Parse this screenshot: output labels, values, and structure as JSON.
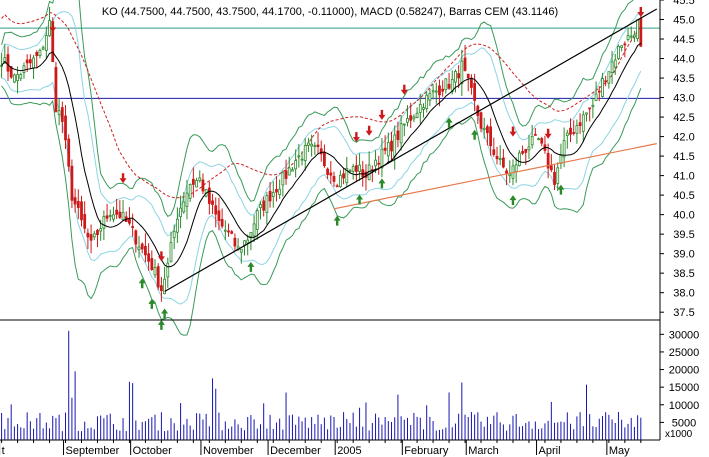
{
  "chart_data": {
    "type": "candlestick",
    "title": "KO (44.7500, 44.7500, 43.7500, 44.1700, -0.11000), MACD (0.58247), Barras CEM (43.1146)",
    "price_axis": {
      "ylim": [
        37.3,
        45.5
      ],
      "ticks": [
        "37.5",
        "38.0",
        "38.5",
        "39.0",
        "39.5",
        "40.0",
        "40.5",
        "41.0",
        "41.5",
        "42.0",
        "42.5",
        "43.0",
        "43.5",
        "44.0",
        "44.5",
        "45.0",
        "45.5"
      ]
    },
    "volume_axis": {
      "ylim": [
        0,
        33500
      ],
      "ticks": [
        "5000",
        "10000",
        "15000",
        "20000",
        "25000",
        "30000"
      ],
      "unit": "x1000"
    },
    "x_axis_labels": [
      {
        "label": "t",
        "index": 0
      },
      {
        "label": "September",
        "index": 20
      },
      {
        "label": "October",
        "index": 41
      },
      {
        "label": "November",
        "index": 63
      },
      {
        "label": "December",
        "index": 84
      },
      {
        "label": "2005",
        "index": 105
      },
      {
        "label": "February",
        "index": 126
      },
      {
        "label": "March",
        "index": 146
      },
      {
        "label": "April",
        "index": 168
      },
      {
        "label": "May",
        "index": 190
      }
    ],
    "num_bars": 205,
    "close_anchors": [
      [
        0,
        44.0
      ],
      [
        4,
        43.5
      ],
      [
        8,
        43.8
      ],
      [
        12,
        44.1
      ],
      [
        15,
        44.9
      ],
      [
        17,
        42.8
      ],
      [
        19,
        42.4
      ],
      [
        22,
        40.5
      ],
      [
        25,
        39.8
      ],
      [
        28,
        39.2
      ],
      [
        31,
        39.7
      ],
      [
        34,
        40.1
      ],
      [
        37,
        40.0
      ],
      [
        40,
        39.7
      ],
      [
        44,
        39.1
      ],
      [
        47,
        38.7
      ],
      [
        50,
        38.1
      ],
      [
        52,
        38.7
      ],
      [
        55,
        40.0
      ],
      [
        59,
        40.8
      ],
      [
        62,
        40.9
      ],
      [
        65,
        40.3
      ],
      [
        68,
        39.8
      ],
      [
        71,
        39.5
      ],
      [
        74,
        39.1
      ],
      [
        77,
        39.4
      ],
      [
        80,
        40.0
      ],
      [
        84,
        40.5
      ],
      [
        88,
        40.9
      ],
      [
        92,
        41.4
      ],
      [
        96,
        41.7
      ],
      [
        99,
        41.6
      ],
      [
        102,
        41.2
      ],
      [
        105,
        40.9
      ],
      [
        108,
        41.1
      ],
      [
        111,
        41.2
      ],
      [
        114,
        41.0
      ],
      [
        117,
        41.4
      ],
      [
        120,
        41.6
      ],
      [
        123,
        41.9
      ],
      [
        126,
        42.3
      ],
      [
        129,
        42.6
      ],
      [
        132,
        42.9
      ],
      [
        135,
        43.1
      ],
      [
        138,
        43.3
      ],
      [
        141,
        43.4
      ],
      [
        144,
        43.8
      ],
      [
        147,
        43.1
      ],
      [
        150,
        42.3
      ],
      [
        153,
        41.8
      ],
      [
        156,
        41.3
      ],
      [
        159,
        41.0
      ],
      [
        162,
        41.5
      ],
      [
        165,
        41.8
      ],
      [
        168,
        41.9
      ],
      [
        171,
        41.3
      ],
      [
        173,
        40.9
      ],
      [
        176,
        41.8
      ],
      [
        179,
        42.2
      ],
      [
        182,
        42.5
      ],
      [
        185,
        42.8
      ],
      [
        188,
        43.4
      ],
      [
        191,
        43.9
      ],
      [
        194,
        44.4
      ],
      [
        197,
        44.6
      ],
      [
        199,
        44.9
      ],
      [
        200,
        44.2
      ]
    ],
    "horizontal_lines": [
      {
        "value": 44.78,
        "color": "#2e9e8a"
      },
      {
        "value": 42.98,
        "color": "#1c1ca8"
      }
    ],
    "trendlines": [
      {
        "from": [
          51,
          38.03
        ],
        "to": [
          205,
          45.27
        ],
        "color": "#000000"
      },
      {
        "from": [
          104,
          40.15
        ],
        "to": [
          205,
          41.82
        ],
        "color": "#e8784a"
      }
    ],
    "buy_signals": [
      51,
      50,
      47,
      44,
      78,
      105,
      112,
      119,
      140,
      148,
      160,
      175
    ],
    "sell_signals": [
      16,
      38,
      50,
      111,
      115,
      119,
      126,
      160,
      171,
      200
    ],
    "colors": {
      "up": "#2a8a2a",
      "down": "#cc1a1a",
      "volume": "#1515b0",
      "moving_average": "#000000",
      "band_outer": "#3a9a5a",
      "band_inner": "#8cd4e4",
      "signal_line": "#cc2222",
      "separator": "#000000"
    }
  }
}
